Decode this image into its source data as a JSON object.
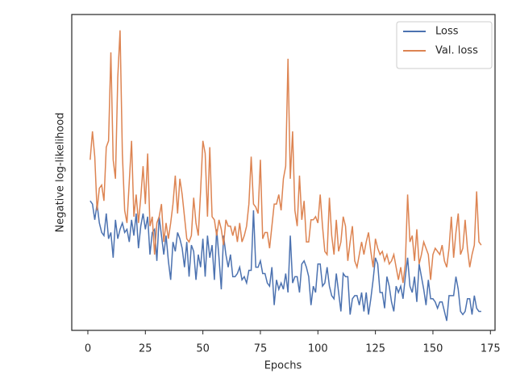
{
  "chart_data": {
    "type": "line",
    "x_label": "Epochs",
    "y_label": "Negative log-likelihood",
    "xlim": [
      -7,
      177
    ],
    "xticks": [
      0,
      25,
      50,
      75,
      100,
      125,
      150,
      175
    ],
    "ylim": [
      0,
      100
    ],
    "legend": "upper right",
    "x": [
      1,
      2,
      3,
      4,
      5,
      6,
      7,
      8,
      9,
      10,
      11,
      12,
      13,
      14,
      15,
      16,
      17,
      18,
      19,
      20,
      21,
      22,
      23,
      24,
      25,
      26,
      27,
      28,
      29,
      30,
      31,
      32,
      33,
      34,
      35,
      36,
      37,
      38,
      39,
      40,
      41,
      42,
      43,
      44,
      45,
      46,
      47,
      48,
      49,
      50,
      51,
      52,
      53,
      54,
      55,
      56,
      57,
      58,
      59,
      60,
      61,
      62,
      63,
      64,
      65,
      66,
      67,
      68,
      69,
      70,
      71,
      72,
      73,
      74,
      75,
      76,
      77,
      78,
      79,
      80,
      81,
      82,
      83,
      84,
      85,
      86,
      87,
      88,
      89,
      90,
      91,
      92,
      93,
      94,
      95,
      96,
      97,
      98,
      99,
      100,
      101,
      102,
      103,
      104,
      105,
      106,
      107,
      108,
      109,
      110,
      111,
      112,
      113,
      114,
      115,
      116,
      117,
      118,
      119,
      120,
      121,
      122,
      123,
      124,
      125,
      126,
      127,
      128,
      129,
      130,
      131,
      132,
      133,
      134,
      135,
      136,
      137,
      138,
      139,
      140,
      141,
      142,
      143,
      144,
      145,
      146,
      147,
      148,
      149,
      150,
      151,
      152,
      153,
      154,
      155,
      156,
      157,
      158,
      159,
      160,
      161,
      162,
      163,
      164,
      165,
      166,
      167,
      168,
      169,
      170,
      171
    ],
    "series": [
      {
        "name": "Loss",
        "color": "#4c72b0",
        "values": [
          41,
          40,
          35,
          40,
          34,
          31,
          30,
          37,
          29,
          31,
          23,
          35,
          29,
          32,
          34,
          31,
          32,
          28,
          35,
          30,
          37,
          26,
          33,
          37,
          32,
          36,
          24,
          31,
          32,
          22,
          36,
          30,
          24,
          30,
          22,
          16,
          28,
          25,
          31,
          29,
          26,
          20,
          28,
          17,
          27,
          25,
          16,
          24,
          20,
          29,
          17,
          30,
          23,
          27,
          16,
          32,
          23,
          13,
          30,
          24,
          20,
          24,
          17,
          17,
          18,
          20,
          16,
          17,
          15,
          19,
          19,
          38,
          20,
          20,
          22,
          18,
          18,
          15,
          14,
          20,
          8,
          16,
          13,
          15,
          13,
          18,
          12,
          30,
          15,
          17,
          17,
          12,
          21,
          22,
          20,
          17,
          8,
          14,
          12,
          21,
          21,
          14,
          15,
          20,
          14,
          11,
          10,
          18,
          12,
          6,
          18,
          17,
          17,
          5,
          10,
          11,
          11,
          8,
          12,
          6,
          12,
          5,
          10,
          16,
          23,
          21,
          12,
          12,
          7,
          17,
          14,
          9,
          6,
          14,
          12,
          14,
          10,
          17,
          23,
          14,
          12,
          17,
          9,
          21,
          17,
          13,
          8,
          16,
          10,
          10,
          9,
          7,
          9,
          9,
          6,
          3,
          11,
          11,
          11,
          17,
          13,
          6,
          5,
          6,
          10,
          10,
          5,
          11,
          7,
          6,
          6
        ]
      },
      {
        "name": "Val. loss",
        "color": "#dd8452",
        "values": [
          54,
          63,
          55,
          38,
          45,
          46,
          41,
          58,
          60,
          88,
          54,
          48,
          80,
          95,
          56,
          38,
          34,
          47,
          60,
          36,
          43,
          34,
          42,
          52,
          40,
          56,
          33,
          36,
          24,
          34,
          36,
          40,
          28,
          34,
          29,
          34,
          40,
          49,
          37,
          48,
          43,
          36,
          29,
          28,
          30,
          42,
          34,
          30,
          44,
          60,
          56,
          36,
          58,
          36,
          35,
          30,
          35,
          32,
          27,
          35,
          33,
          33,
          30,
          33,
          28,
          34,
          28,
          30,
          33,
          40,
          55,
          40,
          39,
          37,
          54,
          29,
          31,
          31,
          26,
          33,
          40,
          40,
          43,
          38,
          48,
          52,
          86,
          48,
          63,
          38,
          33,
          49,
          35,
          41,
          28,
          28,
          35,
          35,
          36,
          34,
          43,
          33,
          25,
          24,
          42,
          30,
          24,
          35,
          25,
          28,
          36,
          33,
          22,
          28,
          33,
          22,
          20,
          24,
          28,
          24,
          28,
          31,
          25,
          20,
          29,
          26,
          24,
          25,
          22,
          24,
          21,
          22,
          24,
          20,
          16,
          20,
          15,
          21,
          43,
          28,
          30,
          22,
          32,
          21,
          24,
          28,
          26,
          24,
          16,
          24,
          26,
          25,
          24,
          27,
          22,
          20,
          26,
          36,
          23,
          31,
          37,
          24,
          26,
          35,
          26,
          20,
          24,
          27,
          44,
          28,
          27
        ]
      }
    ]
  }
}
